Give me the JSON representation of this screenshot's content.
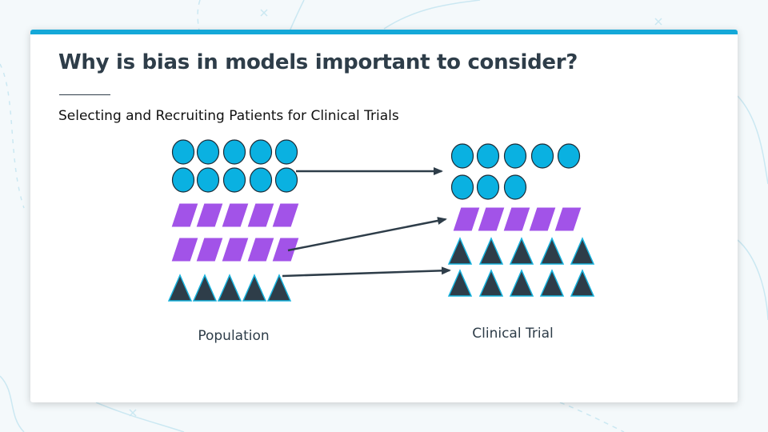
{
  "slide": {
    "title": "Why is bias in models important to consider?",
    "subtitle": "Selecting and Recruiting Patients for Clinical Trials"
  },
  "diagram": {
    "population": {
      "label": "Population",
      "counts": {
        "circles": 10,
        "parallelograms": 10,
        "triangles": 5
      }
    },
    "clinical_trial": {
      "label": "Clinical Trial",
      "counts": {
        "circles": 8,
        "parallelograms": 5,
        "triangles": 10
      }
    },
    "arrows": [
      {
        "from": "population-circles",
        "to": "trial-circles"
      },
      {
        "from": "population-parallelograms",
        "to": "trial-parallelograms"
      },
      {
        "from": "population-triangles",
        "to": "trial-triangles"
      }
    ],
    "colors": {
      "circle": "#0ab1e1",
      "parallelogram": "#a253e8",
      "triangle": "#2e3d49",
      "triangle_outline": "#17b3de",
      "arrow": "#2e3d49",
      "accent": "#15a8d8"
    }
  }
}
